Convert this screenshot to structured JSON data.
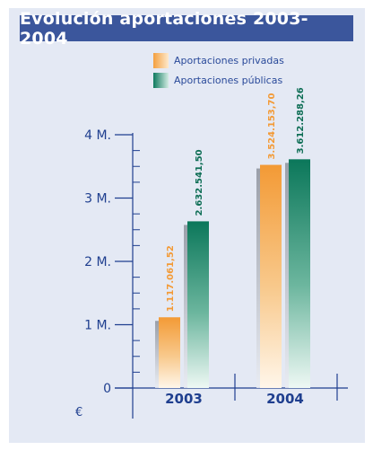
{
  "title": "Evolución aportaciones 2003-2004",
  "legend": [
    {
      "label": "Aportaciones privadas",
      "color": "#f4a040"
    },
    {
      "label": "Aportaciones públicas",
      "color": "#0e7a5e"
    }
  ],
  "unit_symbol": "€",
  "chart_data": {
    "type": "bar",
    "title": "Evolución aportaciones 2003-2004",
    "categories": [
      "2003",
      "2004"
    ],
    "series": [
      {
        "name": "Aportaciones privadas",
        "values": [
          1117061.52,
          3524153.7
        ],
        "labels": [
          "1.117.061,52",
          "3.524.153,70"
        ],
        "color": "#f4a040"
      },
      {
        "name": "Aportaciones públicas",
        "values": [
          2632541.5,
          3612288.26
        ],
        "labels": [
          "2.632.541,50",
          "3.612.288,26"
        ],
        "color": "#0e7a5e"
      }
    ],
    "ylim": [
      0,
      4000000
    ],
    "yticks": [
      {
        "value": 0,
        "label": "0"
      },
      {
        "value": 1000000,
        "label": "1 M."
      },
      {
        "value": 2000000,
        "label": "2 M."
      },
      {
        "value": 3000000,
        "label": "3 M."
      },
      {
        "value": 4000000,
        "label": "4 M."
      }
    ],
    "xlabel": "",
    "ylabel": "",
    "legend_position": "top"
  }
}
